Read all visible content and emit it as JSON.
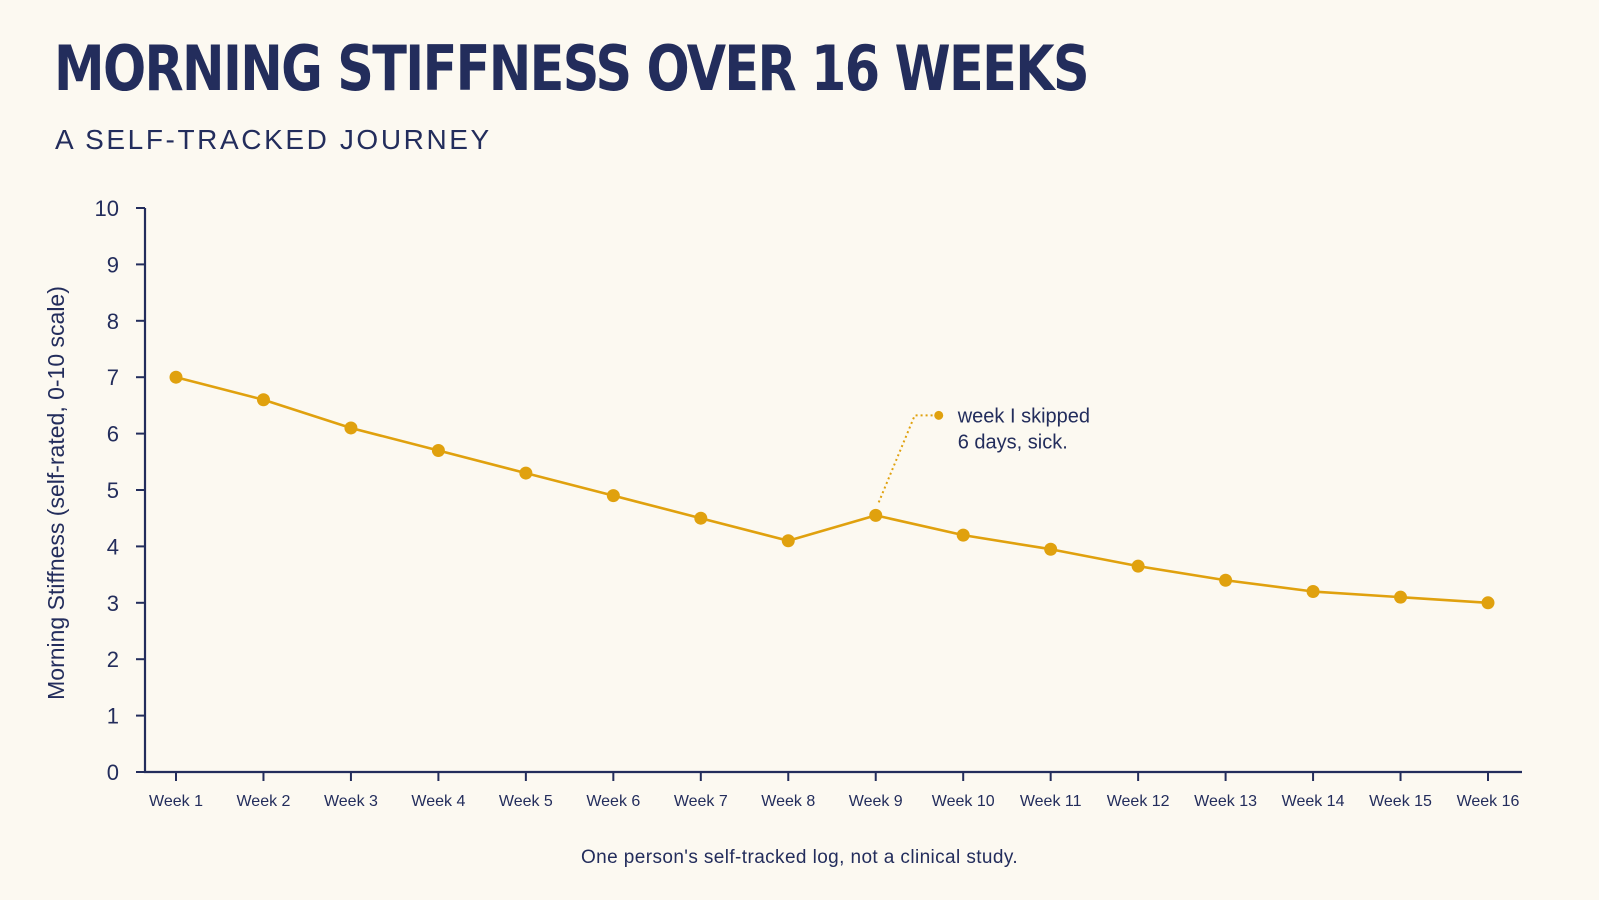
{
  "header": {
    "title": "MORNING STIFFNESS OVER 16 WEEKS",
    "subtitle": "A SELF-TRACKED JOURNEY"
  },
  "footnote": "One person's self-tracked log, not a clinical study.",
  "colors": {
    "background": "#fcf9f1",
    "ink": "#232d5c",
    "series": "#e0a10e"
  },
  "chart_data": {
    "type": "line",
    "title": "MORNING STIFFNESS OVER 16 WEEKS",
    "subtitle": "A SELF-TRACKED JOURNEY",
    "xlabel": "",
    "ylabel": "Morning Stiffness (self-rated, 0-10 scale)",
    "ylim": [
      0,
      10
    ],
    "yticks": [
      "0",
      "1",
      "2",
      "3",
      "4",
      "5",
      "6",
      "7",
      "8",
      "9",
      "10"
    ],
    "categories": [
      "Week 1",
      "Week 2",
      "Week 3",
      "Week 4",
      "Week 5",
      "Week 6",
      "Week 7",
      "Week 8",
      "Week 9",
      "Week 10",
      "Week 11",
      "Week 12",
      "Week 13",
      "Week 14",
      "Week 15",
      "Week 16"
    ],
    "series": [
      {
        "values": [
          7.0,
          6.6,
          6.1,
          5.7,
          5.3,
          4.9,
          4.5,
          4.1,
          4.55,
          4.2,
          3.95,
          3.65,
          3.4,
          3.2,
          3.1,
          3.0
        ]
      }
    ],
    "grid": false,
    "legend": "none",
    "annotations": [
      {
        "category": "Week 9",
        "lines": [
          "week I skipped",
          "6 days, sick."
        ]
      }
    ]
  }
}
